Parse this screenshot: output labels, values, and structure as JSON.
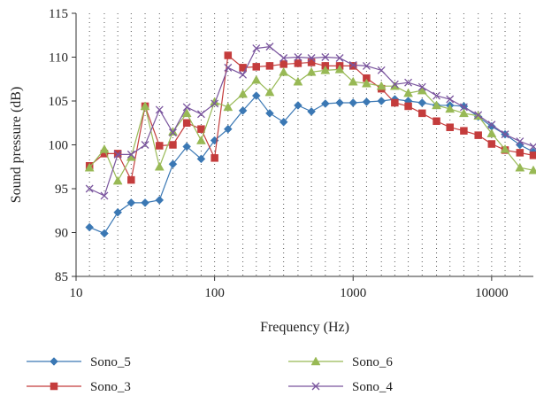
{
  "chart_data": {
    "type": "line",
    "title": "",
    "xlabel": "Frequency (Hz)",
    "ylabel": "Sound pressure (dB)",
    "xscale": "log",
    "xlim": [
      10,
      20000
    ],
    "ylim": [
      85,
      115
    ],
    "xticks": [
      10,
      100,
      1000,
      10000
    ],
    "xtick_labels": [
      "10",
      "100",
      "1000",
      "10000"
    ],
    "yticks": [
      85,
      90,
      95,
      100,
      105,
      110,
      115
    ],
    "ytick_labels": [
      "85",
      "90",
      "95",
      "100",
      "105",
      "110",
      "115"
    ],
    "grid": "vertical dotted at one-third octave bands",
    "legend_position": "bottom",
    "x": [
      12.5,
      16,
      20,
      25,
      31.5,
      40,
      50,
      63,
      80,
      100,
      125,
      160,
      200,
      250,
      315,
      400,
      500,
      630,
      800,
      1000,
      1250,
      1600,
      2000,
      2500,
      3150,
      4000,
      5000,
      6300,
      8000,
      10000,
      12500,
      16000,
      20000
    ],
    "series": [
      {
        "name": "Sono_5",
        "color": "#3b78b4",
        "marker": "diamond",
        "values": [
          90.6,
          89.9,
          92.3,
          93.4,
          93.4,
          93.7,
          97.8,
          99.8,
          98.4,
          100.5,
          101.8,
          103.9,
          105.6,
          103.6,
          102.6,
          104.5,
          103.8,
          104.7,
          104.8,
          104.8,
          104.9,
          105.0,
          105.2,
          105.0,
          104.8,
          104.5,
          104.5,
          104.4,
          103.2,
          102.1,
          101.2,
          100.0,
          99.2
        ]
      },
      {
        "name": "Sono_3",
        "color": "#c43c3c",
        "marker": "square",
        "values": [
          97.6,
          99.0,
          99.0,
          96.0,
          104.4,
          99.9,
          100.0,
          102.5,
          101.8,
          98.5,
          110.2,
          108.8,
          108.9,
          109.0,
          109.2,
          109.3,
          109.4,
          109.0,
          109.0,
          109.0,
          107.6,
          106.4,
          104.8,
          104.4,
          103.6,
          102.7,
          102.0,
          101.6,
          101.1,
          100.1,
          99.4,
          99.1,
          98.8
        ]
      },
      {
        "name": "Sono_6",
        "color": "#98b955",
        "marker": "triangle",
        "values": [
          97.4,
          99.5,
          95.9,
          98.6,
          104.4,
          97.5,
          101.5,
          103.6,
          100.5,
          104.9,
          104.3,
          105.8,
          107.4,
          106.0,
          108.3,
          107.2,
          108.3,
          108.5,
          108.6,
          107.2,
          107.0,
          106.7,
          106.7,
          105.9,
          106.2,
          104.5,
          104.1,
          103.6,
          103.3,
          101.3,
          99.5,
          97.4,
          97.1
        ]
      },
      {
        "name": "Sono_4",
        "color": "#7a559e",
        "marker": "x",
        "values": [
          95.0,
          94.2,
          98.9,
          98.9,
          100.0,
          104.0,
          101.4,
          104.3,
          103.5,
          104.7,
          108.8,
          108.0,
          111.0,
          111.2,
          109.9,
          110.0,
          109.9,
          110.0,
          109.9,
          109.1,
          109.0,
          108.5,
          106.9,
          107.1,
          106.6,
          105.6,
          105.2,
          104.3,
          103.4,
          102.3,
          101.2,
          100.4,
          99.8
        ]
      }
    ]
  }
}
